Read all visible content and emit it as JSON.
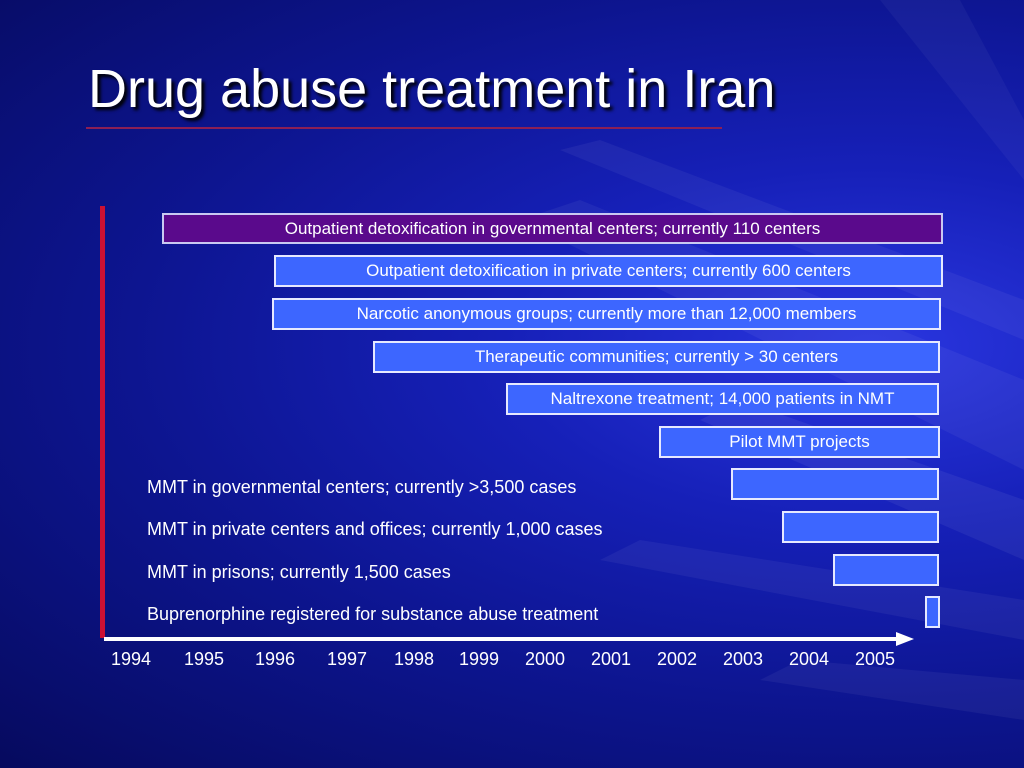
{
  "slide": {
    "title": "Drug abuse treatment in Iran"
  },
  "timeline": {
    "years": [
      "1994",
      "1995",
      "1996",
      "1997",
      "1998",
      "1999",
      "2000",
      "2001",
      "2002",
      "2003",
      "2004",
      "2005"
    ],
    "bars": [
      {
        "text": "Outpatient detoxification in governmental centers; currently 110 centers",
        "color": "#5a0a8c"
      },
      {
        "text": "Outpatient detoxification in private centers; currently 600 centers",
        "color": "#3d66ff"
      },
      {
        "text": "Narcotic anonymous groups; currently more than 12,000 members",
        "color": "#3d66ff"
      },
      {
        "text": "Therapeutic communities; currently > 30 centers",
        "color": "#3d66ff"
      },
      {
        "text": "Naltrexone treatment; 14,000 patients in NMT",
        "color": "#3d66ff"
      },
      {
        "text": "Pilot MMT projects",
        "color": "#3d66ff"
      }
    ],
    "label_rows": [
      {
        "label": "MMT in governmental centers; currently >3,500 cases"
      },
      {
        "label": "MMT in private centers and offices; currently 1,000 cases"
      },
      {
        "label": "MMT in prisons; currently 1,500 cases"
      },
      {
        "label": "Buprenorphine registered for substance abuse treatment"
      }
    ]
  }
}
